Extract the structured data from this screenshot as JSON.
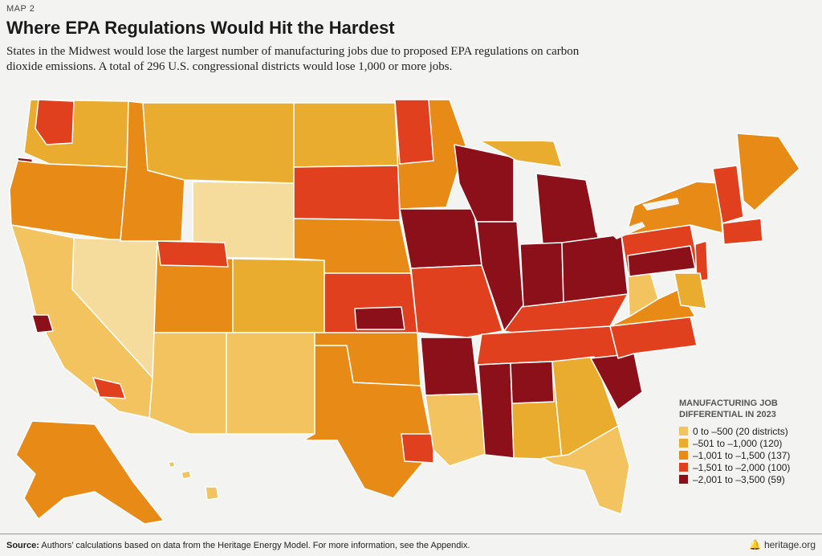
{
  "header": {
    "kicker": "MAP 2",
    "title": "Where EPA Regulations Would Hit the Hardest",
    "subtitle": "States in the Midwest would lose the largest number of manufacturing jobs due to proposed EPA regulations on carbon dioxide emissions. A total of 296 U.S. congressional districts would lose 1,000 or more jobs."
  },
  "legend": {
    "title": "MANUFACTURING JOB DIFFERENTIAL IN 2023",
    "items": [
      {
        "label": "0 to –500 (20 districts)",
        "color": "#f2c35e"
      },
      {
        "label": "–501 to –1,000 (120)",
        "color": "#e9ac2e"
      },
      {
        "label": "–1,001 to –1,500 (137)",
        "color": "#e88a16"
      },
      {
        "label": "–1,501 to –2,000 (100)",
        "color": "#e0401e"
      },
      {
        "label": "–2,001 to –3,500 (59)",
        "color": "#8c1019"
      }
    ]
  },
  "footer": {
    "source_label": "Source:",
    "source_text": "Authors’ calculations based on data from the Heritage Energy Model. For more information, see the Appendix.",
    "brand": "heritage.org",
    "brand_icon": "liberty-bell-icon"
  },
  "colors": {
    "c1": "#f2c35e",
    "c2": "#e9ac2e",
    "c3": "#e88a16",
    "c4": "#e0401e",
    "c5": "#8c1019",
    "light": "#f5dc9c",
    "border": "#ffffff"
  }
}
